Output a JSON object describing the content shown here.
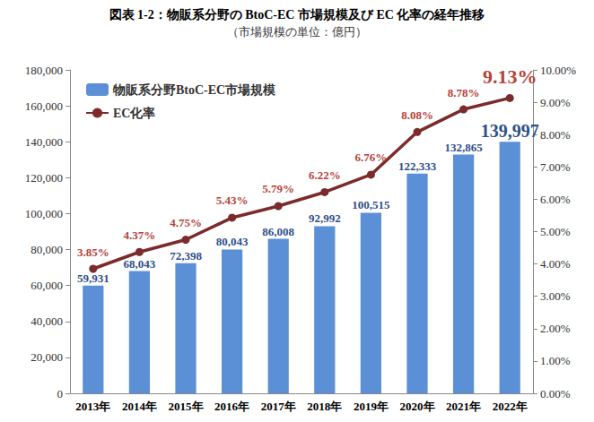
{
  "chart_data": {
    "type": "bar",
    "title": "図表 1-2：物販系分野の BtoC-EC 市場規模及び EC 化率の経年推移",
    "subtitle": "（市場規模の単位：億円）",
    "categories": [
      "2013年",
      "2014年",
      "2015年",
      "2016年",
      "2017年",
      "2018年",
      "2019年",
      "2020年",
      "2021年",
      "2022年"
    ],
    "series": [
      {
        "name": "物販系分野BtoC-EC市場規模",
        "type": "bar",
        "color": "#5b8fd6",
        "values": [
          59931,
          68043,
          72398,
          80043,
          86008,
          92992,
          100515,
          122333,
          132865,
          139997
        ],
        "value_labels": [
          "59,931",
          "68,043",
          "72,398",
          "80,043",
          "86,008",
          "92,992",
          "100,515",
          "122,333",
          "132,865",
          "139,997"
        ]
      },
      {
        "name": "EC化率",
        "type": "line",
        "color": "#7b2b2b",
        "marker": "circle",
        "axis": "y2",
        "values": [
          3.85,
          4.37,
          4.75,
          5.43,
          5.79,
          6.22,
          6.76,
          8.08,
          8.78,
          9.13
        ],
        "value_labels": [
          "3.85%",
          "4.37%",
          "4.75%",
          "5.43%",
          "5.79%",
          "6.22%",
          "6.76%",
          "8.08%",
          "8.78%",
          "9.13%"
        ]
      }
    ],
    "ylim": [
      0,
      180000
    ],
    "yticks": [
      {
        "value": 0,
        "label": "0"
      },
      {
        "value": 20000,
        "label": "20,000"
      },
      {
        "value": 40000,
        "label": "40,000"
      },
      {
        "value": 60000,
        "label": "60,000"
      },
      {
        "value": 80000,
        "label": "80,000"
      },
      {
        "value": 100000,
        "label": "100,000"
      },
      {
        "value": 120000,
        "label": "120,000"
      },
      {
        "value": 140000,
        "label": "140,000"
      },
      {
        "value": 160000,
        "label": "160,000"
      },
      {
        "value": 180000,
        "label": "180,000"
      }
    ],
    "y2lim": [
      0,
      10
    ],
    "y2ticks": [
      {
        "value": 0,
        "label": "0.00%"
      },
      {
        "value": 1,
        "label": "1.00%"
      },
      {
        "value": 2,
        "label": "2.00%"
      },
      {
        "value": 3,
        "label": "3.00%"
      },
      {
        "value": 4,
        "label": "4.00%"
      },
      {
        "value": 5,
        "label": "5.00%"
      },
      {
        "value": 6,
        "label": "6.00%"
      },
      {
        "value": 7,
        "label": "7.00%"
      },
      {
        "value": 8,
        "label": "8.00%"
      },
      {
        "value": 9,
        "label": "9.00%"
      },
      {
        "value": 10,
        "label": "10.00%"
      }
    ],
    "grid": false,
    "legend": "upper left",
    "data_labels": true
  }
}
